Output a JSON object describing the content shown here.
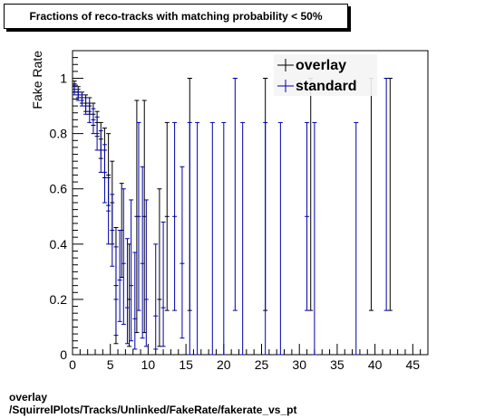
{
  "chart_data": {
    "type": "scatter",
    "title": "Fractions of reco-tracks with matching probability < 50%",
    "xlabel": "",
    "ylabel": "Fake Rate",
    "xlim": [
      0,
      47
    ],
    "ylim": [
      0,
      1.1
    ],
    "x_ticks": [
      "0",
      "5",
      "10",
      "15",
      "20",
      "25",
      "30",
      "35",
      "40",
      "45"
    ],
    "y_ticks": [
      "0",
      "0.2",
      "0.4",
      "0.6",
      "0.8",
      "1"
    ],
    "legend_position": "top-right",
    "grid": false,
    "series": [
      {
        "name": "overlay",
        "color": "#000000",
        "points": [
          {
            "x": 0.25,
            "y": 0.97,
            "lo": 0.95,
            "hi": 0.99
          },
          {
            "x": 0.75,
            "y": 0.95,
            "lo": 0.93,
            "hi": 0.97
          },
          {
            "x": 1.25,
            "y": 0.93,
            "lo": 0.91,
            "hi": 0.95
          },
          {
            "x": 1.75,
            "y": 0.91,
            "lo": 0.88,
            "hi": 0.94
          },
          {
            "x": 2.25,
            "y": 0.9,
            "lo": 0.87,
            "hi": 0.93
          },
          {
            "x": 2.75,
            "y": 0.87,
            "lo": 0.83,
            "hi": 0.91
          },
          {
            "x": 3.25,
            "y": 0.84,
            "lo": 0.79,
            "hi": 0.88
          },
          {
            "x": 3.75,
            "y": 0.78,
            "lo": 0.71,
            "hi": 0.84
          },
          {
            "x": 4.25,
            "y": 0.74,
            "lo": 0.64,
            "hi": 0.82
          },
          {
            "x": 4.75,
            "y": 0.65,
            "lo": 0.54,
            "hi": 0.8
          },
          {
            "x": 5.25,
            "y": 0.55,
            "lo": 0.4,
            "hi": 0.7
          },
          {
            "x": 5.75,
            "y": 0.25,
            "lo": 0.04,
            "hi": 0.46
          },
          {
            "x": 6.5,
            "y": 0.45,
            "lo": 0.28,
            "hi": 0.62
          },
          {
            "x": 7.5,
            "y": 0.2,
            "lo": 0.03,
            "hi": 0.4
          },
          {
            "x": 8.5,
            "y": 0.5,
            "lo": 0.08,
            "hi": 0.92
          },
          {
            "x": 9.5,
            "y": 0.5,
            "lo": 0.08,
            "hi": 0.92
          },
          {
            "x": 11.5,
            "y": 0.2,
            "lo": 0.03,
            "hi": 0.6
          },
          {
            "x": 12.5,
            "y": 0.5,
            "lo": 0.16,
            "hi": 0.84
          },
          {
            "x": 15.5,
            "y": 1.0,
            "lo": 0.16,
            "hi": 1.0
          },
          {
            "x": 25.5,
            "y": 1.0,
            "lo": 0.16,
            "hi": 1.0
          },
          {
            "x": 31.5,
            "y": 1.0,
            "lo": 0.16,
            "hi": 1.0
          },
          {
            "x": 39.5,
            "y": 1.0,
            "lo": 0.16,
            "hi": 1.0
          },
          {
            "x": 42.0,
            "y": 1.0,
            "lo": 0.16,
            "hi": 1.0
          }
        ]
      },
      {
        "name": "standard",
        "color": "#0000aa",
        "points": [
          {
            "x": 0.25,
            "y": 0.96,
            "lo": 0.94,
            "hi": 0.98
          },
          {
            "x": 0.75,
            "y": 0.94,
            "lo": 0.92,
            "hi": 0.96
          },
          {
            "x": 1.25,
            "y": 0.92,
            "lo": 0.9,
            "hi": 0.94
          },
          {
            "x": 1.75,
            "y": 0.9,
            "lo": 0.87,
            "hi": 0.93
          },
          {
            "x": 2.25,
            "y": 0.88,
            "lo": 0.84,
            "hi": 0.91
          },
          {
            "x": 2.75,
            "y": 0.85,
            "lo": 0.8,
            "hi": 0.89
          },
          {
            "x": 3.25,
            "y": 0.8,
            "lo": 0.74,
            "hi": 0.86
          },
          {
            "x": 3.75,
            "y": 0.74,
            "lo": 0.66,
            "hi": 0.81
          },
          {
            "x": 4.25,
            "y": 0.66,
            "lo": 0.55,
            "hi": 0.76
          },
          {
            "x": 4.75,
            "y": 0.52,
            "lo": 0.4,
            "hi": 0.64
          },
          {
            "x": 5.25,
            "y": 0.45,
            "lo": 0.32,
            "hi": 0.58
          },
          {
            "x": 5.75,
            "y": 0.2,
            "lo": 0.07,
            "hi": 0.39
          },
          {
            "x": 6.25,
            "y": 0.27,
            "lo": 0.12,
            "hi": 0.45
          },
          {
            "x": 6.75,
            "y": 0.33,
            "lo": 0.11,
            "hi": 0.6
          },
          {
            "x": 7.25,
            "y": 0.17,
            "lo": 0.04,
            "hi": 0.42
          },
          {
            "x": 7.75,
            "y": 0.25,
            "lo": 0.05,
            "hi": 0.56
          },
          {
            "x": 8.25,
            "y": 0.13,
            "lo": 0.02,
            "hi": 0.37
          },
          {
            "x": 8.75,
            "y": 0.5,
            "lo": 0.16,
            "hi": 0.84
          },
          {
            "x": 9.25,
            "y": 0.33,
            "lo": 0.06,
            "hi": 0.68
          },
          {
            "x": 9.75,
            "y": 0.2,
            "lo": 0.03,
            "hi": 0.56
          },
          {
            "x": 11.0,
            "y": 0.14,
            "lo": 0.02,
            "hi": 0.4
          },
          {
            "x": 12.0,
            "y": 0.17,
            "lo": 0.03,
            "hi": 0.48
          },
          {
            "x": 13.5,
            "y": 0.5,
            "lo": 0.16,
            "hi": 0.84
          },
          {
            "x": 14.5,
            "y": 0.33,
            "lo": 0.06,
            "hi": 0.68
          },
          {
            "x": 15.5,
            "y": 0.0,
            "lo": 0.0,
            "hi": 0.84
          },
          {
            "x": 16.5,
            "y": 0.0,
            "lo": 0.0,
            "hi": 0.84
          },
          {
            "x": 18.5,
            "y": 0.0,
            "lo": 0.0,
            "hi": 0.84
          },
          {
            "x": 20.0,
            "y": 0.0,
            "lo": 0.0,
            "hi": 0.84
          },
          {
            "x": 21.5,
            "y": 1.0,
            "lo": 0.16,
            "hi": 1.0
          },
          {
            "x": 22.5,
            "y": 0.0,
            "lo": 0.0,
            "hi": 0.84
          },
          {
            "x": 25.5,
            "y": 0.0,
            "lo": 0.0,
            "hi": 0.84
          },
          {
            "x": 27.5,
            "y": 0.0,
            "lo": 0.0,
            "hi": 0.84
          },
          {
            "x": 31.0,
            "y": 0.5,
            "lo": 0.16,
            "hi": 0.84
          },
          {
            "x": 32.0,
            "y": 0.0,
            "lo": 0.0,
            "hi": 0.84
          },
          {
            "x": 37.5,
            "y": 0.0,
            "lo": 0.0,
            "hi": 0.84
          },
          {
            "x": 41.5,
            "y": 1.0,
            "lo": 0.16,
            "hi": 1.0
          }
        ]
      }
    ]
  },
  "footer": {
    "line1": "overlay",
    "line2": "/SquirrelPlots/Tracks/Unlinked/FakeRate/fakerate_vs_pt"
  }
}
